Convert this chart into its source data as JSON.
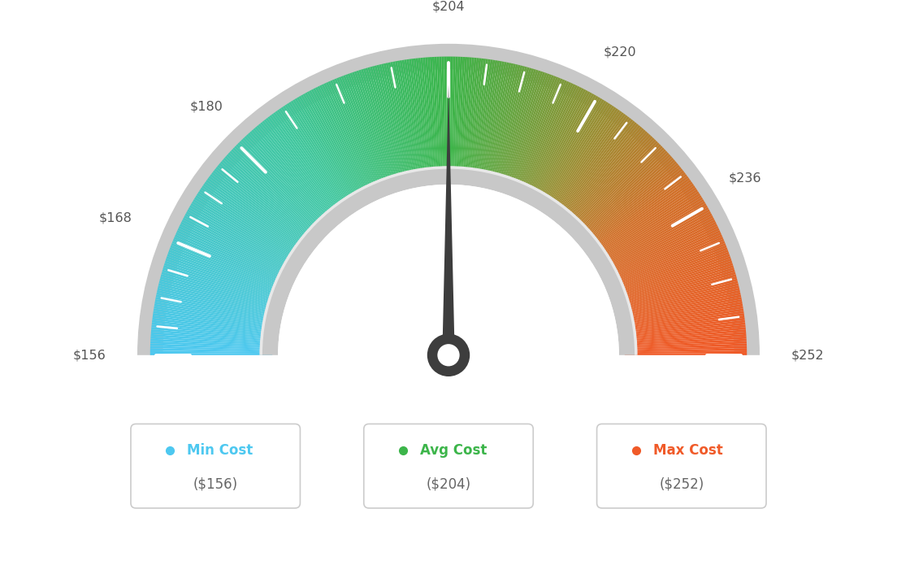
{
  "min_val": 156,
  "max_val": 252,
  "avg_val": 204,
  "tick_labels": [
    "$156",
    "$168",
    "$180",
    "$204",
    "$220",
    "$236",
    "$252"
  ],
  "tick_values": [
    156,
    168,
    180,
    204,
    220,
    236,
    252
  ],
  "min_cost_label": "Min Cost",
  "avg_cost_label": "Avg Cost",
  "max_cost_label": "Max Cost",
  "min_cost_value": "($156)",
  "avg_cost_value": "($204)",
  "max_cost_value": "($252)",
  "min_color": "#4DC8F0",
  "avg_color": "#3CB54A",
  "max_color": "#F05A28",
  "background_color": "#ffffff",
  "needle_value": 204,
  "color_stops": [
    [
      0.0,
      [
        0.302,
        0.784,
        0.941
      ]
    ],
    [
      0.3,
      [
        0.251,
        0.78,
        0.62
      ]
    ],
    [
      0.5,
      [
        0.235,
        0.71,
        0.29
      ]
    ],
    [
      0.68,
      [
        0.6,
        0.56,
        0.2
      ]
    ],
    [
      0.8,
      [
        0.82,
        0.44,
        0.16
      ]
    ],
    [
      1.0,
      [
        0.941,
        0.353,
        0.157
      ]
    ]
  ]
}
